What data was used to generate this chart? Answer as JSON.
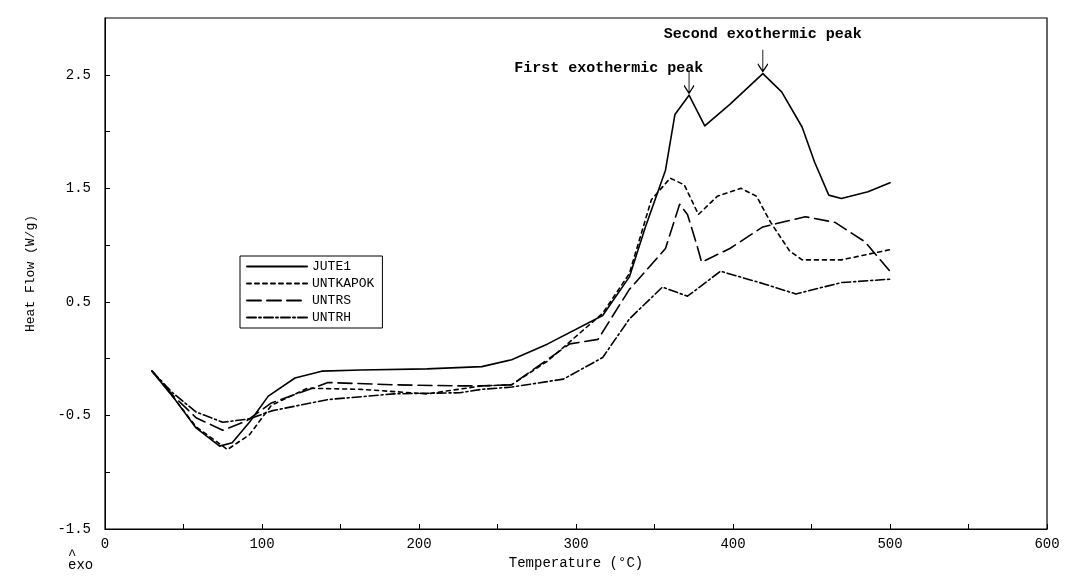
{
  "chart_data": {
    "type": "line",
    "xlabel": "Temperature (°C)",
    "ylabel": "Heat Flow (W/g)",
    "xlim": [
      0,
      600
    ],
    "xticks": [
      0,
      {
        "value": 50,
        "label": null
      },
      100,
      {
        "value": 150,
        "label": null
      },
      200,
      {
        "value": 250,
        "label": null
      },
      300,
      {
        "value": 350,
        "label": null
      },
      400,
      {
        "value": 450,
        "label": null
      },
      500,
      {
        "value": 550,
        "label": null
      },
      600
    ],
    "ylim": [
      -1.5,
      3.0
    ],
    "yticks": [
      -1.5,
      {
        "value": -1.0,
        "label": null
      },
      -0.5,
      {
        "value": 0.0,
        "label": null
      },
      0.5,
      {
        "value": 1.0,
        "label": null
      },
      1.5,
      {
        "value": 2.0,
        "label": null
      },
      2.5
    ],
    "grid": false,
    "legend": "left",
    "marker": "none",
    "annotations": [
      {
        "text": "First exothermic peak",
        "x": 372,
        "y": 2.32
      },
      {
        "text": "Second exothermic peak",
        "x": 419,
        "y": 2.51
      },
      "^\nexo"
    ],
    "series": [
      {
        "name": "JUTE1",
        "color": "#000000",
        "line_style": "solid",
        "x": [
          30,
          43,
          58,
          73,
          81,
          92,
          104,
          121,
          138,
          163,
          205,
          240,
          259,
          282,
          317,
          334,
          344,
          357,
          363,
          372,
          382,
          398,
          419,
          431,
          444,
          452,
          461,
          469,
          486,
          500
        ],
        "values": [
          -0.11,
          -0.33,
          -0.61,
          -0.77,
          -0.74,
          -0.56,
          -0.33,
          -0.17,
          -0.11,
          -0.1,
          -0.09,
          -0.07,
          -0.01,
          0.13,
          0.38,
          0.72,
          1.15,
          1.66,
          2.15,
          2.32,
          2.05,
          2.24,
          2.51,
          2.35,
          2.04,
          1.73,
          1.44,
          1.41,
          1.47,
          1.55
        ]
      },
      {
        "name": "UNTKAPOK",
        "color": "#000000",
        "line_style": "dotted",
        "x": [
          30,
          43,
          58,
          78,
          92,
          106,
          129,
          163,
          205,
          240,
          259,
          282,
          292,
          317,
          334,
          348,
          360,
          369,
          378,
          390,
          405,
          415,
          424,
          436,
          444,
          469,
          500
        ],
        "values": [
          -0.11,
          -0.33,
          -0.6,
          -0.8,
          -0.67,
          -0.41,
          -0.26,
          -0.27,
          -0.31,
          -0.24,
          -0.23,
          -0.02,
          0.1,
          0.4,
          0.75,
          1.4,
          1.59,
          1.53,
          1.27,
          1.43,
          1.5,
          1.43,
          1.2,
          0.95,
          0.87,
          0.87,
          0.96
        ]
      },
      {
        "name": "UNTRS",
        "color": "#000000",
        "line_style": "dashed",
        "x": [
          30,
          43,
          58,
          75,
          90,
          106,
          142,
          184,
          226,
          240,
          259,
          296,
          314,
          334,
          357,
          366,
          371,
          377,
          380,
          398,
          419,
          446,
          465,
          484,
          500
        ],
        "values": [
          -0.11,
          -0.32,
          -0.52,
          -0.63,
          -0.55,
          -0.39,
          -0.21,
          -0.23,
          -0.24,
          -0.24,
          -0.23,
          0.13,
          0.17,
          0.61,
          0.97,
          1.36,
          1.27,
          1.0,
          0.85,
          0.97,
          1.16,
          1.25,
          1.2,
          1.03,
          0.77
        ]
      },
      {
        "name": "UNTRH",
        "color": "#000000",
        "line_style": "dashdot",
        "x": [
          30,
          43,
          58,
          75,
          92,
          106,
          142,
          184,
          226,
          240,
          259,
          292,
          317,
          334,
          355,
          371,
          392,
          417,
          440,
          469,
          500
        ],
        "values": [
          -0.11,
          -0.3,
          -0.47,
          -0.56,
          -0.53,
          -0.46,
          -0.36,
          -0.31,
          -0.3,
          -0.27,
          -0.25,
          -0.18,
          0.01,
          0.35,
          0.63,
          0.55,
          0.77,
          0.67,
          0.57,
          0.67,
          0.7
        ]
      }
    ]
  }
}
